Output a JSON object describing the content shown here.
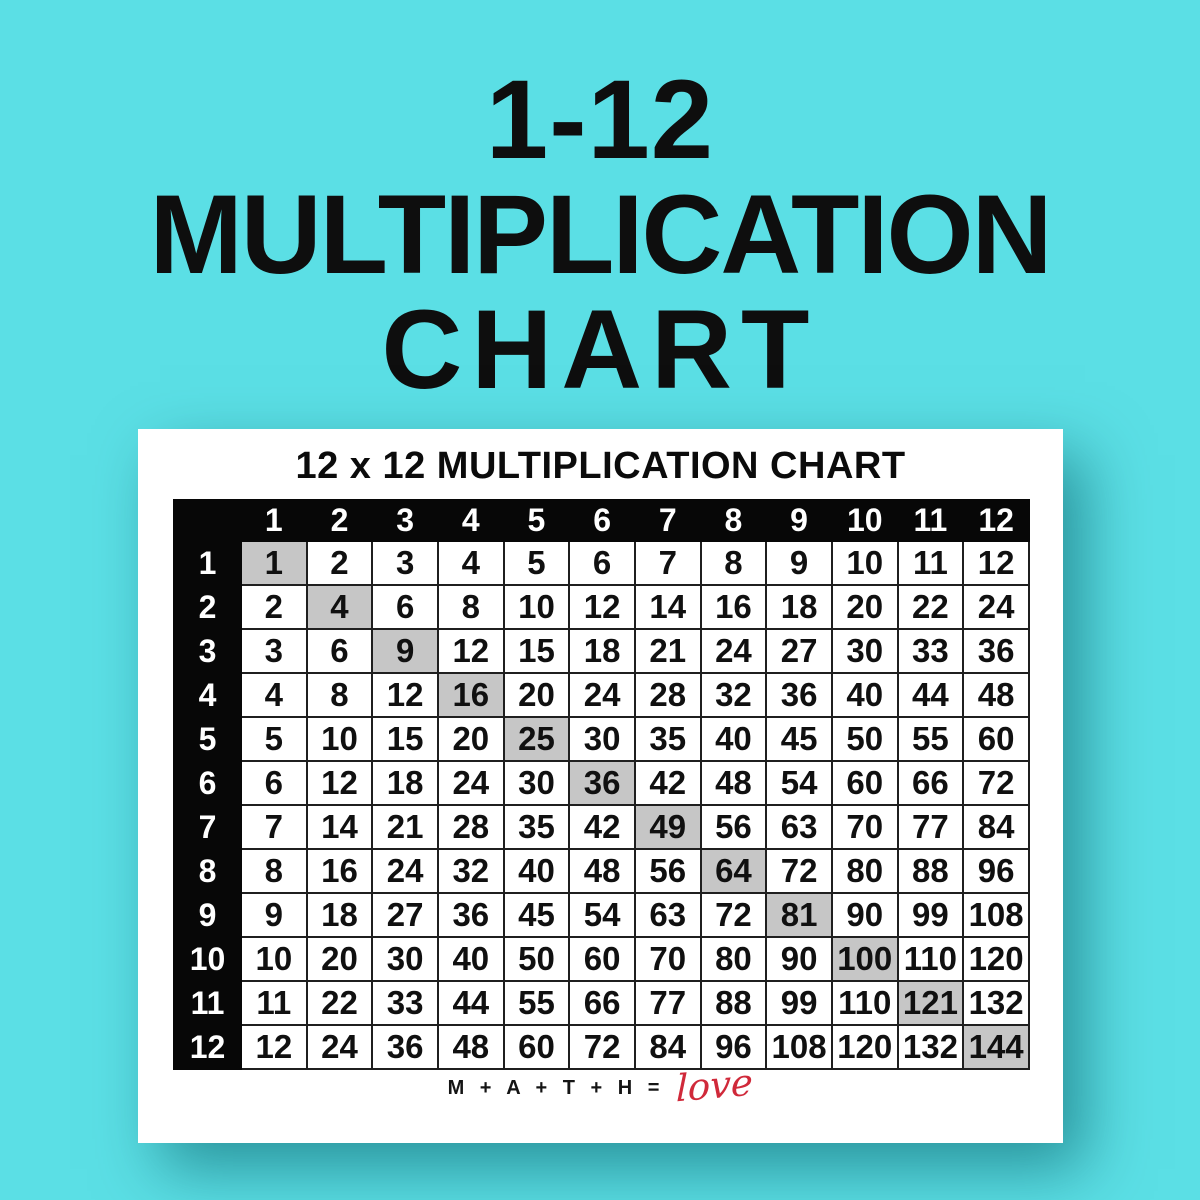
{
  "title": {
    "line1": "1-12",
    "line2": "MULTIPLICATION",
    "line3": "CHART"
  },
  "card": {
    "heading": "12 x 12 MULTIPLICATION CHART",
    "footer": {
      "equation": "M + A + T + H =",
      "love_word": "love"
    }
  },
  "table": {
    "column_headers": [
      1,
      2,
      3,
      4,
      5,
      6,
      7,
      8,
      9,
      10,
      11,
      12
    ],
    "rows": [
      {
        "header": 1,
        "values": [
          1,
          2,
          3,
          4,
          5,
          6,
          7,
          8,
          9,
          10,
          11,
          12
        ]
      },
      {
        "header": 2,
        "values": [
          2,
          4,
          6,
          8,
          10,
          12,
          14,
          16,
          18,
          20,
          22,
          24
        ]
      },
      {
        "header": 3,
        "values": [
          3,
          6,
          9,
          12,
          15,
          18,
          21,
          24,
          27,
          30,
          33,
          36
        ]
      },
      {
        "header": 4,
        "values": [
          4,
          8,
          12,
          16,
          20,
          24,
          28,
          32,
          36,
          40,
          44,
          48
        ]
      },
      {
        "header": 5,
        "values": [
          5,
          10,
          15,
          20,
          25,
          30,
          35,
          40,
          45,
          50,
          55,
          60
        ]
      },
      {
        "header": 6,
        "values": [
          6,
          12,
          18,
          24,
          30,
          36,
          42,
          48,
          54,
          60,
          66,
          72
        ]
      },
      {
        "header": 7,
        "values": [
          7,
          14,
          21,
          28,
          35,
          42,
          49,
          56,
          63,
          70,
          77,
          84
        ]
      },
      {
        "header": 8,
        "values": [
          8,
          16,
          24,
          32,
          40,
          48,
          56,
          64,
          72,
          80,
          88,
          96
        ]
      },
      {
        "header": 9,
        "values": [
          9,
          18,
          27,
          36,
          45,
          54,
          63,
          72,
          81,
          90,
          99,
          108
        ]
      },
      {
        "header": 10,
        "values": [
          10,
          20,
          30,
          40,
          50,
          60,
          70,
          80,
          90,
          100,
          110,
          120
        ]
      },
      {
        "header": 11,
        "values": [
          11,
          22,
          33,
          44,
          55,
          66,
          77,
          88,
          99,
          110,
          121,
          132
        ]
      },
      {
        "header": 12,
        "values": [
          12,
          24,
          36,
          48,
          60,
          72,
          84,
          96,
          108,
          120,
          132,
          144
        ]
      }
    ]
  },
  "colors": {
    "background": "#5BDFE5",
    "card": "#FFFFFF",
    "text": "#0E0E0E",
    "table_header": "#070707",
    "diagonal_highlight": "#C6C6C6",
    "grid_line": "#1F1F1F",
    "love_red": "#D0293A"
  }
}
